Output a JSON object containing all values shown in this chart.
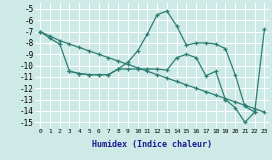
{
  "xlabel": "Humidex (Indice chaleur)",
  "xlim": [
    -0.5,
    23.5
  ],
  "ylim": [
    -15.5,
    -4.5
  ],
  "yticks": [
    -5,
    -6,
    -7,
    -8,
    -9,
    -10,
    -11,
    -12,
    -13,
    -14,
    -15
  ],
  "xticks": [
    0,
    1,
    2,
    3,
    4,
    5,
    6,
    7,
    8,
    9,
    10,
    11,
    12,
    13,
    14,
    15,
    16,
    17,
    18,
    19,
    20,
    21,
    22,
    23
  ],
  "line_color": "#2e7d74",
  "bg_color": "#ceeae6",
  "grid_color": "#ffffff",
  "line1_x": [
    0,
    1,
    2,
    3,
    4,
    5,
    6,
    7,
    8,
    9,
    10,
    11,
    12,
    13,
    14,
    15,
    16,
    17,
    18,
    19,
    20,
    21,
    22,
    23
  ],
  "line1_y": [
    -7.0,
    -7.4,
    -7.8,
    -8.1,
    -8.4,
    -8.7,
    -9.0,
    -9.3,
    -9.6,
    -9.9,
    -10.2,
    -10.5,
    -10.8,
    -11.1,
    -11.4,
    -11.7,
    -12.0,
    -12.3,
    -12.6,
    -12.9,
    -13.2,
    -13.5,
    -13.8,
    -14.1
  ],
  "line2_x": [
    0,
    1,
    2,
    3,
    4,
    5,
    6,
    7,
    8,
    9,
    10,
    11,
    12,
    13,
    14,
    15,
    16,
    17,
    18,
    19,
    20,
    21,
    22,
    23
  ],
  "line2_y": [
    -7.0,
    -7.6,
    -8.1,
    -10.5,
    -10.7,
    -10.8,
    -10.8,
    -10.8,
    -10.3,
    -9.7,
    -8.7,
    -7.2,
    -5.5,
    -5.2,
    -6.5,
    -8.2,
    -8.0,
    -8.0,
    -8.1,
    -8.5,
    -10.8,
    -13.6,
    -14.1,
    -6.8
  ],
  "line3_x": [
    3,
    4,
    5,
    6,
    7,
    8,
    9,
    10,
    11,
    12,
    13,
    14,
    15,
    16,
    17,
    18,
    19,
    20,
    21,
    22
  ],
  "line3_y": [
    -10.5,
    -10.7,
    -10.8,
    -10.8,
    -10.8,
    -10.3,
    -10.3,
    -10.3,
    -10.3,
    -10.3,
    -10.4,
    -9.3,
    -9.0,
    -9.3,
    -10.9,
    -10.5,
    -13.0,
    -13.7,
    -15.0,
    -14.1
  ]
}
